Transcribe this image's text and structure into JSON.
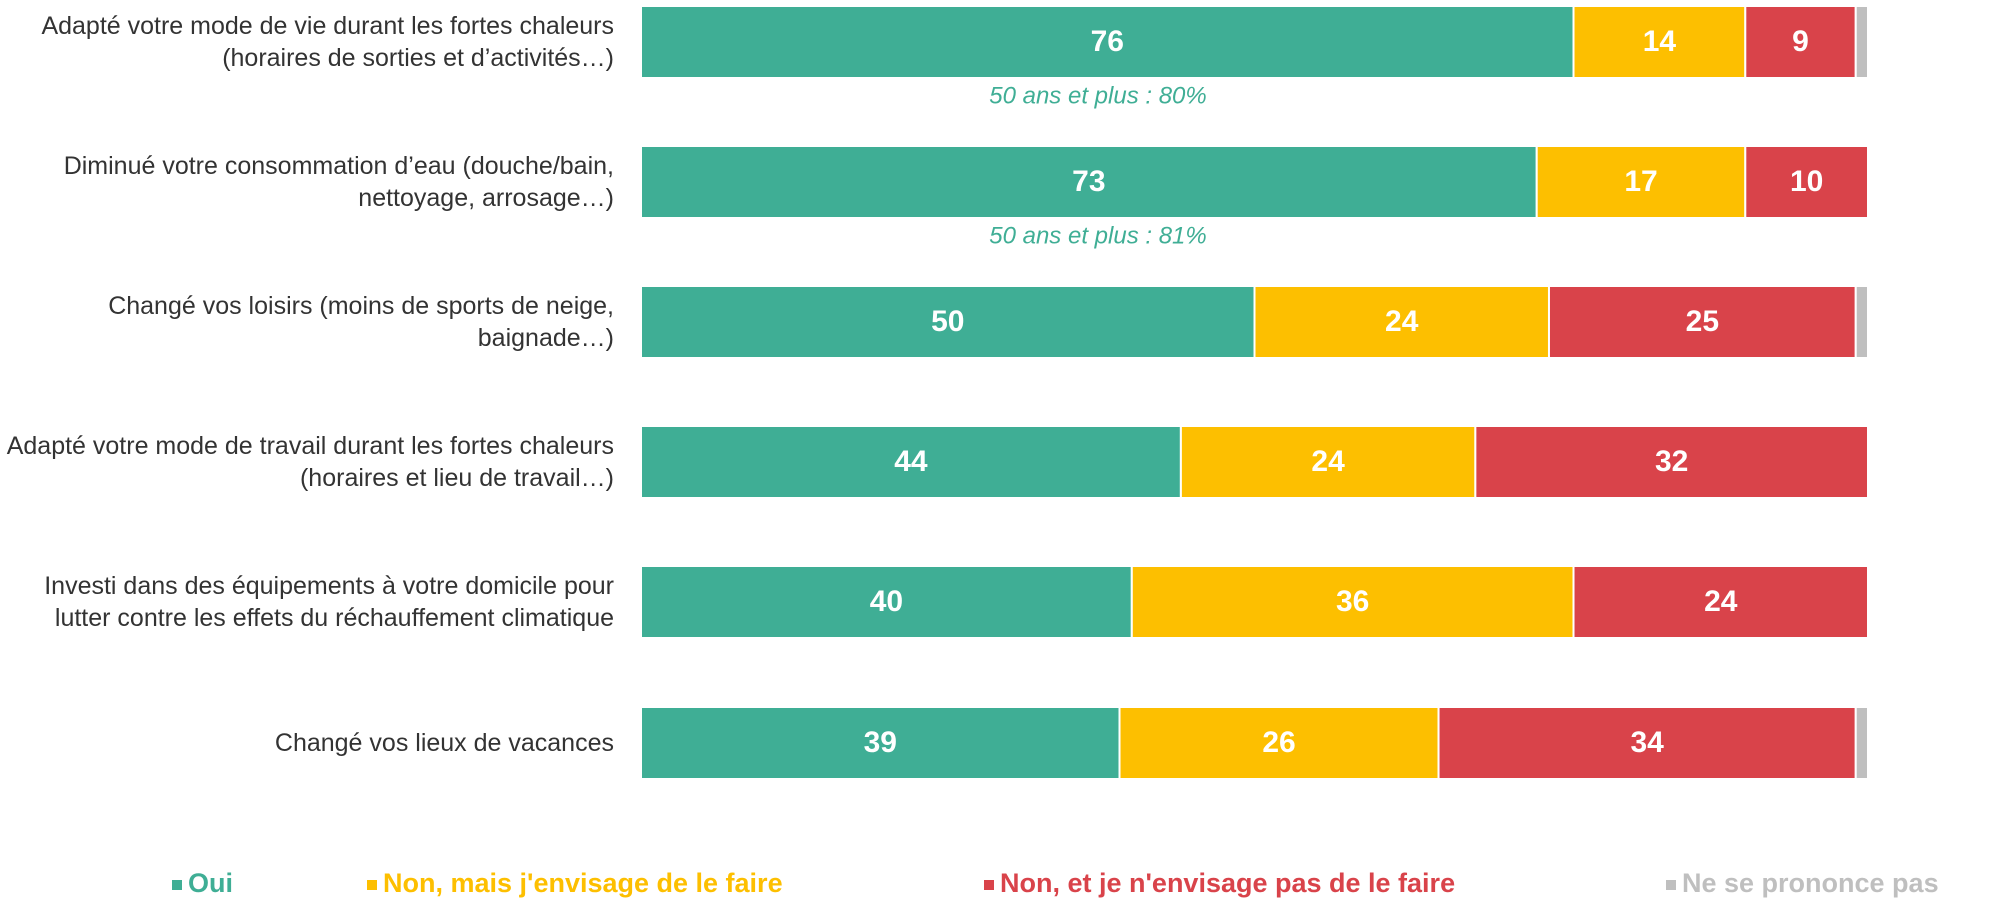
{
  "chart_data": {
    "type": "stacked-bar-horizontal",
    "categories": [
      "Adapté votre mode de vie durant les fortes chaleurs (horaires de sorties et d’activités…)",
      "Diminué votre consommation d’eau (douche/bain, nettoyage, arrosage…)",
      "Changé vos loisirs (moins de sports de neige, baignade…)",
      "Adapté votre mode de travail durant les fortes chaleurs (horaires et lieu de travail…)",
      "Investi dans des équipements à votre domicile pour lutter contre les effets du réchauffement climatique",
      "Changé vos lieux de vacances"
    ],
    "series": [
      {
        "name": "Oui",
        "color": "#3fae95",
        "values": [
          76,
          73,
          50,
          44,
          40,
          39
        ]
      },
      {
        "name": "Non, mais j'envisage de le faire",
        "color": "#fdbf00",
        "values": [
          14,
          17,
          24,
          24,
          36,
          26
        ]
      },
      {
        "name": "Non, et je n'envisage pas de le faire",
        "color": "#d9434a",
        "values": [
          9,
          10,
          25,
          32,
          24,
          34
        ]
      },
      {
        "name": "Ne se prononce pas",
        "color": "#bfbfbf",
        "values": [
          1,
          0,
          1,
          0,
          0,
          1
        ]
      }
    ],
    "xlim": [
      0,
      100
    ],
    "annotations": [
      {
        "category": 0,
        "text": "50 ans et plus : 80%"
      },
      {
        "category": 1,
        "text": "50 ans et plus : 81%"
      }
    ],
    "annotation_color": "#3fae95",
    "legend": "bottom"
  }
}
